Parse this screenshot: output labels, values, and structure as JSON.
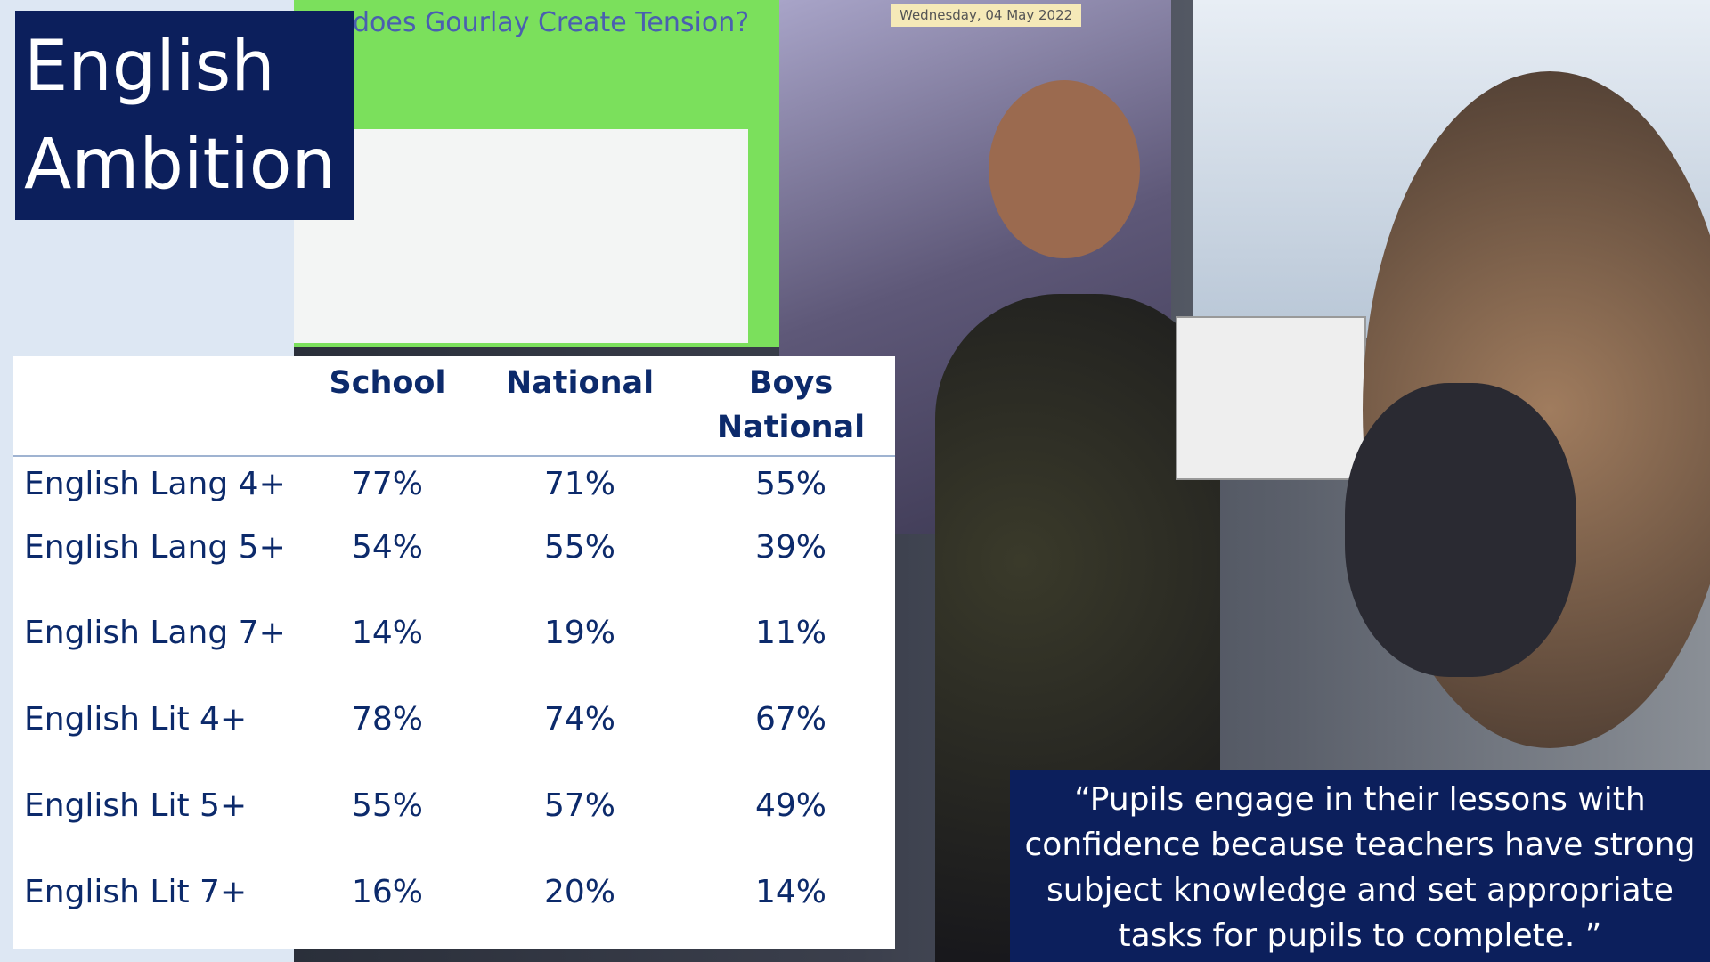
{
  "header": {
    "title_line1": "English",
    "title_line2": "Ambition"
  },
  "photo_screen": {
    "heading": "does Gourlay Create Tension?",
    "date": "Wednesday, 04 May 2022"
  },
  "table": {
    "columns": [
      "School",
      "National",
      "Boys National"
    ],
    "rows": [
      [
        "English Lang 4+",
        "77%",
        "71%",
        "55%"
      ],
      [
        "English Lang 5+",
        "54%",
        "55%",
        "39%"
      ],
      [
        "English Lang 7+",
        "14%",
        "19%",
        "11%"
      ],
      [
        "English Lit 4+",
        "78%",
        "74%",
        "67%"
      ],
      [
        "English Lit 5+",
        "55%",
        "57%",
        "49%"
      ],
      [
        "English Lit 7+",
        "16%",
        "20%",
        "14%"
      ]
    ]
  },
  "quote": {
    "text": "“Pupils engage in their lessons with confidence because teachers have strong subject knowledge and set appropriate tasks for pupils to complete. ”"
  }
}
